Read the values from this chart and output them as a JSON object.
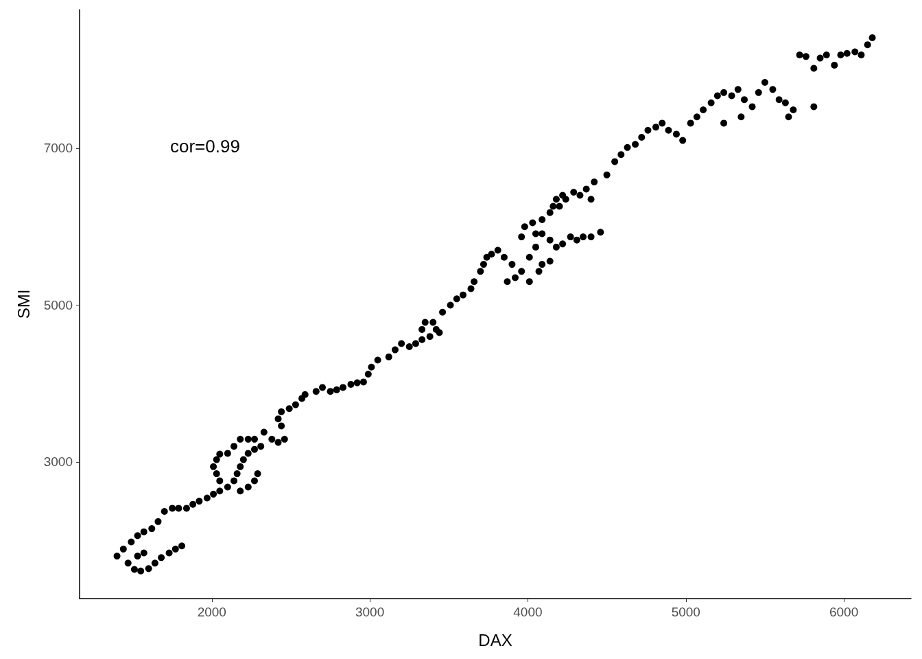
{
  "chart_data": {
    "type": "scatter",
    "xlabel": "DAX",
    "ylabel": "SMI",
    "annotations": [
      "cor=0.99"
    ],
    "marker": "circle",
    "color": "#000000",
    "xlim": [
      1163,
      6425
    ],
    "xticks": [
      2000,
      3000,
      4000,
      5000,
      6000
    ],
    "ylim": [
      1258,
      8768
    ],
    "yticks": [
      3000,
      5000,
      7000
    ],
    "x": [
      1400,
      1440,
      1490,
      1530,
      1570,
      1620,
      1660,
      1700,
      1750,
      1470,
      1510,
      1550,
      1600,
      1640,
      1680,
      1730,
      1770,
      1810,
      1530,
      1570,
      1790,
      1840,
      1880,
      1920,
      1970,
      2010,
      2050,
      2100,
      2140,
      2160,
      2180,
      2200,
      2230,
      2270,
      2310,
      2290,
      2270,
      2230,
      2180,
      2050,
      2030,
      2010,
      2030,
      2050,
      2100,
      2140,
      2180,
      2230,
      2270,
      2330,
      2380,
      2420,
      2460,
      2440,
      2420,
      2440,
      2490,
      2530,
      2570,
      2590,
      2660,
      2700,
      2750,
      2790,
      2830,
      2880,
      2920,
      2960,
      2990,
      3010,
      3050,
      3120,
      3160,
      3200,
      3250,
      3290,
      3330,
      3380,
      3420,
      3400,
      3350,
      3330,
      3440,
      3460,
      3510,
      3550,
      3590,
      3640,
      3660,
      3700,
      3720,
      3740,
      3770,
      3810,
      3850,
      3900,
      3870,
      3920,
      3960,
      3980,
      4030,
      4050,
      4090,
      4140,
      4160,
      4180,
      4200,
      4220,
      4240,
      4290,
      4330,
      4370,
      4420,
      4400,
      4500,
      4550,
      4590,
      4630,
      4680,
      4720,
      4760,
      4810,
      4850,
      4890,
      4940,
      4980,
      5030,
      5070,
      5110,
      5160,
      5200,
      5240,
      5290,
      5330,
      5370,
      5420,
      5460,
      5500,
      5550,
      5590,
      5630,
      5680,
      5720,
      5760,
      5810,
      5850,
      5890,
      5940,
      5980,
      6020,
      6070,
      6110,
      6150,
      6180,
      4010,
      4050,
      4090,
      4140,
      4180,
      4220,
      4270,
      4310,
      4350,
      4400,
      4460,
      4010,
      4090,
      4140,
      4070,
      3960,
      5240,
      5350,
      5650,
      5810
    ],
    "values": [
      1800,
      1890,
      1980,
      2060,
      2110,
      2150,
      2240,
      2370,
      2410,
      1710,
      1630,
      1610,
      1640,
      1710,
      1780,
      1840,
      1890,
      1930,
      1800,
      1840,
      2410,
      2410,
      2460,
      2500,
      2540,
      2590,
      2630,
      2680,
      2760,
      2850,
      2940,
      3030,
      3110,
      3160,
      3200,
      2850,
      2760,
      2680,
      2630,
      2760,
      2850,
      2940,
      3030,
      3100,
      3110,
      3200,
      3290,
      3290,
      3290,
      3380,
      3290,
      3250,
      3290,
      3460,
      3550,
      3640,
      3680,
      3730,
      3810,
      3860,
      3900,
      3950,
      3900,
      3920,
      3950,
      3990,
      4010,
      4020,
      4120,
      4210,
      4300,
      4340,
      4430,
      4510,
      4470,
      4510,
      4560,
      4600,
      4690,
      4780,
      4780,
      4690,
      4650,
      4910,
      5000,
      5080,
      5130,
      5210,
      5300,
      5430,
      5520,
      5610,
      5650,
      5700,
      5610,
      5520,
      5300,
      5350,
      5870,
      6000,
      6050,
      5910,
      6090,
      6180,
      6260,
      6350,
      6260,
      6400,
      6350,
      6440,
      6400,
      6480,
      6570,
      6350,
      6660,
      6830,
      6920,
      7010,
      7050,
      7140,
      7230,
      7270,
      7320,
      7230,
      7180,
      7100,
      7320,
      7400,
      7490,
      7580,
      7670,
      7710,
      7670,
      7750,
      7620,
      7530,
      7710,
      7840,
      7750,
      7620,
      7580,
      7490,
      8190,
      8170,
      8020,
      8150,
      8190,
      8060,
      8190,
      8210,
      8230,
      8190,
      8320,
      8410,
      5610,
      5740,
      5910,
      5830,
      5740,
      5780,
      5870,
      5830,
      5870,
      5870,
      5930,
      5300,
      5520,
      5560,
      5430,
      5430,
      7320,
      7400,
      7400,
      7530
    ]
  }
}
